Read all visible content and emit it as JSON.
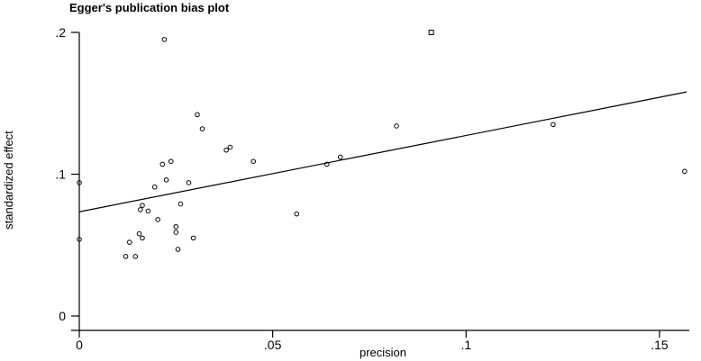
{
  "chart_data": {
    "type": "scatter",
    "title": "Egger's publication bias plot",
    "xlabel": "precision",
    "ylabel": "standardized effect",
    "xlim": [
      0,
      0.157
    ],
    "ylim": [
      0,
      0.2
    ],
    "x_ticks": [
      0,
      0.05,
      0.1,
      0.15
    ],
    "x_tick_labels": [
      "0",
      ".05",
      ".1",
      ".15"
    ],
    "y_ticks": [
      0,
      0.1,
      0.2
    ],
    "y_tick_labels": [
      "0",
      ".1",
      ".2"
    ],
    "grid": false,
    "series": [
      {
        "name": "studies",
        "marker": "circle-outline",
        "points": [
          [
            0.0,
            0.094
          ],
          [
            0.0,
            0.054
          ],
          [
            0.012,
            0.042
          ],
          [
            0.013,
            0.052
          ],
          [
            0.0145,
            0.042
          ],
          [
            0.0155,
            0.058
          ],
          [
            0.0163,
            0.055
          ],
          [
            0.0158,
            0.075
          ],
          [
            0.0163,
            0.078
          ],
          [
            0.0178,
            0.074
          ],
          [
            0.0195,
            0.091
          ],
          [
            0.0203,
            0.068
          ],
          [
            0.0215,
            0.107
          ],
          [
            0.022,
            0.195
          ],
          [
            0.0225,
            0.096
          ],
          [
            0.0237,
            0.109
          ],
          [
            0.025,
            0.063
          ],
          [
            0.025,
            0.059
          ],
          [
            0.0255,
            0.047
          ],
          [
            0.0262,
            0.079
          ],
          [
            0.0283,
            0.094
          ],
          [
            0.0295,
            0.055
          ],
          [
            0.0305,
            0.142
          ],
          [
            0.0318,
            0.132
          ],
          [
            0.038,
            0.117
          ],
          [
            0.039,
            0.119
          ],
          [
            0.045,
            0.109
          ],
          [
            0.0562,
            0.072
          ],
          [
            0.064,
            0.107
          ],
          [
            0.0675,
            0.112
          ],
          [
            0.082,
            0.134
          ],
          [
            0.1225,
            0.135
          ],
          [
            0.1565,
            0.102
          ]
        ]
      },
      {
        "name": "study-square",
        "marker": "square-outline",
        "points": [
          [
            0.091,
            0.2
          ]
        ]
      },
      {
        "name": "regression-line",
        "type": "line",
        "points": [
          [
            0.0,
            0.0735
          ],
          [
            0.157,
            0.158
          ]
        ]
      }
    ]
  }
}
